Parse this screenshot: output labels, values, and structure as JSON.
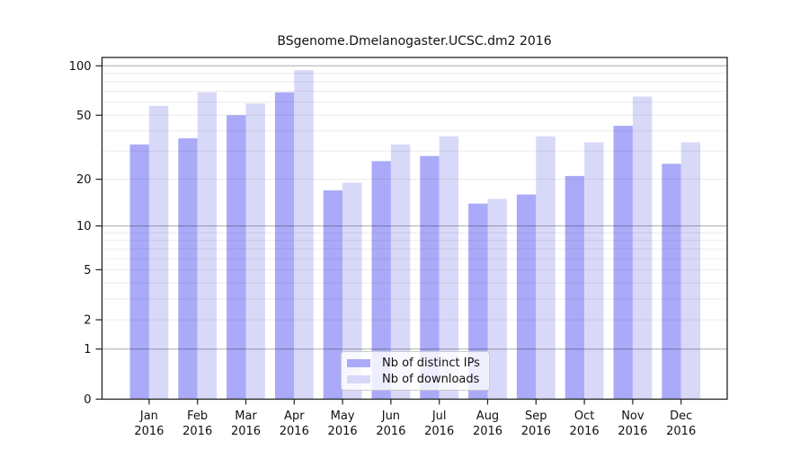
{
  "chart_data": {
    "type": "bar",
    "title": "BSgenome.Dmelanogaster.UCSC.dm2 2016",
    "categories": [
      "Jan 2016",
      "Feb 2016",
      "Mar 2016",
      "Apr 2016",
      "May 2016",
      "Jun 2016",
      "Jul 2016",
      "Aug 2016",
      "Sep 2016",
      "Oct 2016",
      "Nov 2016",
      "Dec 2016"
    ],
    "series": [
      {
        "name": "Nb of distinct IPs",
        "color": "#aaaaf9",
        "values": [
          33,
          36,
          50,
          69,
          17,
          26,
          28,
          14,
          16,
          21,
          43,
          25
        ]
      },
      {
        "name": "Nb of downloads",
        "color": "#d8d8f9",
        "values": [
          57,
          69,
          59,
          94,
          19,
          33,
          37,
          15,
          37,
          34,
          65,
          34
        ]
      }
    ],
    "yscale": "log1p",
    "yticks": [
      0,
      1,
      2,
      5,
      10,
      20,
      50,
      100
    ],
    "ylim": [
      0,
      111
    ],
    "xlabel": "",
    "ylabel": "",
    "grid": "horizontal log decades dark, log minors light",
    "legend_position": "inside bottom-center"
  },
  "legend": {
    "items": [
      {
        "label": "Nb of distinct IPs",
        "color": "#aaaaf9"
      },
      {
        "label": "Nb of downloads",
        "color": "#d8d8f9"
      }
    ]
  },
  "colors": {
    "ips_bar": "#aaaaf9",
    "downloads_bar": "#d8d8f9",
    "axis": "#222222",
    "text": "#111111"
  }
}
